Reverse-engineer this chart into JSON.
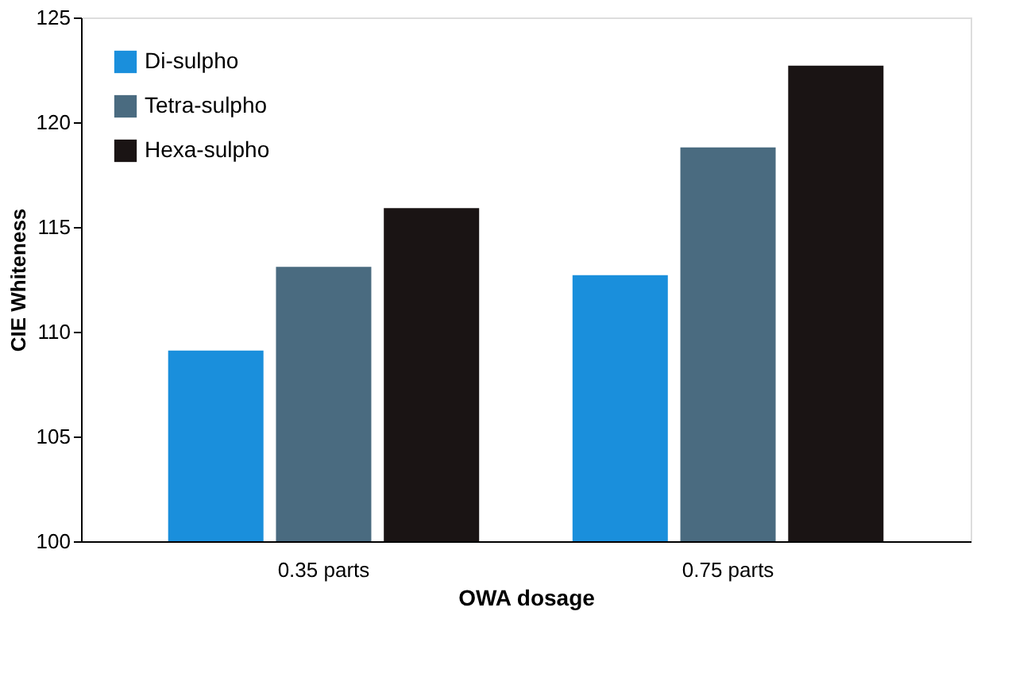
{
  "chart_data": {
    "type": "bar",
    "xlabel": "OWA dosage",
    "ylabel": "CIE Whiteness",
    "categories": [
      "0.35 parts",
      "0.75 parts"
    ],
    "series": [
      {
        "name": "Di-sulpho",
        "color": "#1a8fdc",
        "values": [
          109.1,
          112.7
        ]
      },
      {
        "name": "Tetra-sulpho",
        "color": "#4a6b80",
        "values": [
          113.1,
          118.8
        ]
      },
      {
        "name": "Hexa-sulpho",
        "color": "#1a1414",
        "values": [
          115.9,
          122.7
        ]
      }
    ],
    "ylim": [
      100,
      125
    ],
    "yticks": [
      100,
      105,
      110,
      115,
      120,
      125
    ],
    "grid": false,
    "legend": "top left"
  }
}
